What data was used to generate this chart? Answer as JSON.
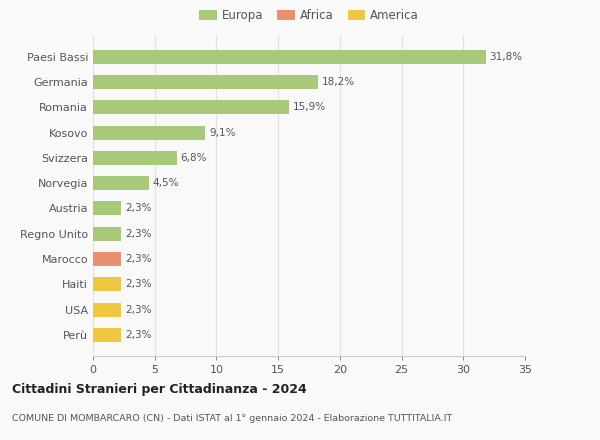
{
  "countries": [
    "Paesi Bassi",
    "Germania",
    "Romania",
    "Kosovo",
    "Svizzera",
    "Norvegia",
    "Austria",
    "Regno Unito",
    "Marocco",
    "Haiti",
    "USA",
    "Perù"
  ],
  "values": [
    31.8,
    18.2,
    15.9,
    9.1,
    6.8,
    4.5,
    2.3,
    2.3,
    2.3,
    2.3,
    2.3,
    2.3
  ],
  "labels": [
    "31,8%",
    "18,2%",
    "15,9%",
    "9,1%",
    "6,8%",
    "4,5%",
    "2,3%",
    "2,3%",
    "2,3%",
    "2,3%",
    "2,3%",
    "2,3%"
  ],
  "colors": [
    "#a8c87a",
    "#a8c87a",
    "#a8c87a",
    "#a8c87a",
    "#a8c87a",
    "#a8c87a",
    "#a8c87a",
    "#a8c87a",
    "#e89070",
    "#f0c840",
    "#f0c840",
    "#f0c840"
  ],
  "categories": {
    "Europa": "#a8c87a",
    "Africa": "#e89070",
    "America": "#f0c840"
  },
  "xlim": [
    0,
    35
  ],
  "xticks": [
    0,
    5,
    10,
    15,
    20,
    25,
    30,
    35
  ],
  "title": "Cittadini Stranieri per Cittadinanza - 2024",
  "subtitle": "COMUNE DI MOMBARCARO (CN) - Dati ISTAT al 1° gennaio 2024 - Elaborazione TUTTITALIA.IT",
  "bg_color": "#f9f9f9",
  "grid_color": "#e0e0e0",
  "bar_height": 0.55
}
